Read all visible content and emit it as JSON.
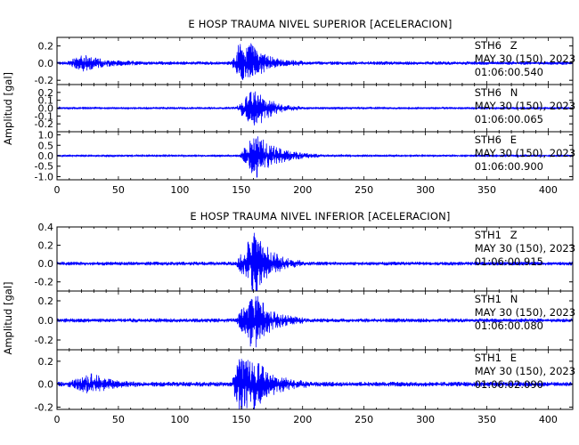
{
  "chart_data": [
    {
      "type": "line",
      "title": "E HOSP TRAUMA NIVEL SUPERIOR [ACELERACION]",
      "ylabel": "Amplitud [gal]",
      "xlim": [
        0,
        420
      ],
      "x_ticks": [
        0,
        50,
        100,
        150,
        200,
        250,
        300,
        350,
        400
      ],
      "line_color": "#0000ff",
      "grid": false,
      "traces": [
        {
          "station": "STH6",
          "component": "Z",
          "date": "MAY 30 (150), 2023",
          "time": "01:06:00.540",
          "ylim": [
            -0.25,
            0.3
          ],
          "y_ticks": [
            -0.2,
            0.0,
            0.2
          ],
          "y_tick_labels": [
            "-0.2",
            "0.0",
            "0.2"
          ],
          "noise_amplitude": 0.02,
          "events": [
            {
              "t_start": 8,
              "t_peak": 22,
              "t_end": 70,
              "peak_amplitude": 0.08
            },
            {
              "t_start": 142,
              "t_peak": 150,
              "t_end": 158,
              "peak_amplitude": 0.27
            },
            {
              "t_start": 150,
              "t_peak": 158,
              "t_end": 200,
              "peak_amplitude": 0.2
            }
          ]
        },
        {
          "station": "STH6",
          "component": "N",
          "date": "MAY 30 (150), 2023",
          "time": "01:06:00.065",
          "ylim": [
            -0.3,
            0.3
          ],
          "y_ticks": [
            -0.2,
            -0.1,
            0.0,
            0.1,
            0.2
          ],
          "y_tick_labels": [
            "-0.2",
            "-0.1",
            "0.0",
            "0.1",
            "0.2"
          ],
          "noise_amplitude": 0.012,
          "events": [
            {
              "t_start": 145,
              "t_peak": 162,
              "t_end": 200,
              "peak_amplitude": 0.26
            }
          ]
        },
        {
          "station": "STH6",
          "component": "E",
          "date": "MAY 30 (150), 2023",
          "time": "01:06:00.900",
          "ylim": [
            -1.15,
            1.15
          ],
          "y_ticks": [
            -1.0,
            -0.5,
            0.0,
            0.5,
            1.0
          ],
          "y_tick_labels": [
            "-1.0",
            "-0.5",
            "0.0",
            "0.5",
            "1.0"
          ],
          "noise_amplitude": 0.04,
          "events": [
            {
              "t_start": 148,
              "t_peak": 162,
              "t_end": 215,
              "peak_amplitude": 1.05
            }
          ]
        }
      ]
    },
    {
      "type": "line",
      "title": "E HOSP TRAUMA NIVEL INFERIOR [ACELERACION]",
      "ylabel": "Amplitud [gal]",
      "xlim": [
        0,
        420
      ],
      "x_ticks": [
        0,
        50,
        100,
        150,
        200,
        250,
        300,
        350,
        400
      ],
      "line_color": "#0000ff",
      "grid": false,
      "traces": [
        {
          "station": "STH1",
          "component": "Z",
          "date": "MAY 30 (150), 2023",
          "time": "01:06:00.915",
          "ylim": [
            -0.3,
            0.4
          ],
          "y_ticks": [
            -0.2,
            0.0,
            0.2,
            0.4
          ],
          "y_tick_labels": [
            "-0.2",
            "0.0",
            "0.2",
            "0.4"
          ],
          "noise_amplitude": 0.02,
          "events": [
            {
              "t_start": 146,
              "t_peak": 162,
              "t_end": 200,
              "peak_amplitude": 0.36
            }
          ]
        },
        {
          "station": "STH1",
          "component": "N",
          "date": "MAY 30 (150), 2023",
          "time": "01:06:00.080",
          "ylim": [
            -0.3,
            0.3
          ],
          "y_ticks": [
            -0.2,
            0.0,
            0.2
          ],
          "y_tick_labels": [
            "-0.2",
            "0.0",
            "0.2"
          ],
          "noise_amplitude": 0.02,
          "events": [
            {
              "t_start": 146,
              "t_peak": 160,
              "t_end": 200,
              "peak_amplitude": 0.3
            }
          ]
        },
        {
          "station": "STH1",
          "component": "E",
          "date": "MAY 30 (150), 2023",
          "time": "01:06:02.090",
          "ylim": [
            -0.22,
            0.3
          ],
          "y_ticks": [
            -0.2,
            0.0,
            0.2
          ],
          "y_tick_labels": [
            "-0.2",
            "0.0",
            "0.2"
          ],
          "noise_amplitude": 0.02,
          "events": [
            {
              "t_start": 8,
              "t_peak": 30,
              "t_end": 65,
              "peak_amplitude": 0.08
            },
            {
              "t_start": 142,
              "t_peak": 150,
              "t_end": 158,
              "peak_amplitude": 0.25
            },
            {
              "t_start": 150,
              "t_peak": 158,
              "t_end": 205,
              "peak_amplitude": 0.26
            }
          ]
        }
      ]
    }
  ]
}
